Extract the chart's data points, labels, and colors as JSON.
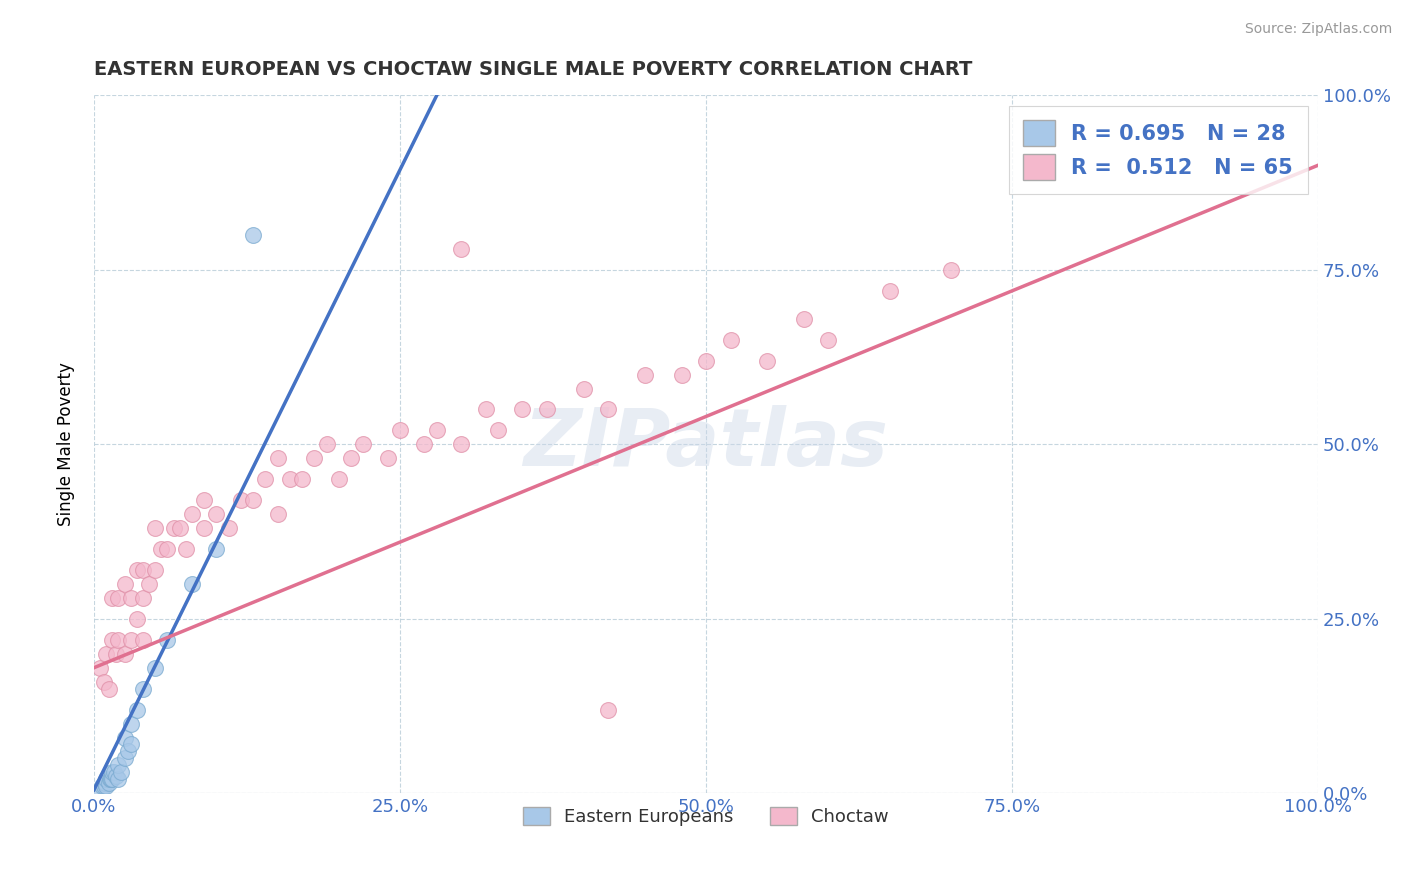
{
  "title": "EASTERN EUROPEAN VS CHOCTAW SINGLE MALE POVERTY CORRELATION CHART",
  "source": "Source: ZipAtlas.com",
  "ylabel": "Single Male Poverty",
  "watermark": "ZIPatlas",
  "blue_R": 0.695,
  "blue_N": 28,
  "pink_R": 0.512,
  "pink_N": 65,
  "blue_color": "#a8c8e8",
  "blue_edge_color": "#7aaad0",
  "blue_line_color": "#4472c4",
  "pink_color": "#f4b8cc",
  "pink_edge_color": "#e090a8",
  "pink_line_color": "#e07090",
  "legend_label_blue": "Eastern Europeans",
  "legend_label_pink": "Choctaw",
  "blue_line_x0": 0.0,
  "blue_line_y0": 0.005,
  "blue_line_x1": 0.28,
  "blue_line_y1": 1.0,
  "pink_line_x0": 0.0,
  "pink_line_y0": 0.18,
  "pink_line_x1": 1.0,
  "pink_line_y1": 0.9,
  "blue_points_x": [
    0.005,
    0.007,
    0.008,
    0.009,
    0.01,
    0.01,
    0.012,
    0.013,
    0.014,
    0.015,
    0.015,
    0.016,
    0.018,
    0.02,
    0.02,
    0.022,
    0.025,
    0.025,
    0.028,
    0.03,
    0.03,
    0.035,
    0.04,
    0.05,
    0.06,
    0.08,
    0.1,
    0.13
  ],
  "blue_points_y": [
    0.005,
    0.01,
    0.01,
    0.015,
    0.01,
    0.02,
    0.015,
    0.02,
    0.02,
    0.02,
    0.03,
    0.03,
    0.025,
    0.02,
    0.04,
    0.03,
    0.05,
    0.08,
    0.06,
    0.07,
    0.1,
    0.12,
    0.15,
    0.18,
    0.22,
    0.3,
    0.35,
    0.8
  ],
  "pink_points_x": [
    0.005,
    0.008,
    0.01,
    0.012,
    0.015,
    0.015,
    0.018,
    0.02,
    0.02,
    0.025,
    0.025,
    0.03,
    0.03,
    0.035,
    0.035,
    0.04,
    0.04,
    0.04,
    0.045,
    0.05,
    0.05,
    0.055,
    0.06,
    0.065,
    0.07,
    0.075,
    0.08,
    0.09,
    0.09,
    0.1,
    0.11,
    0.12,
    0.13,
    0.14,
    0.15,
    0.15,
    0.16,
    0.17,
    0.18,
    0.19,
    0.2,
    0.21,
    0.22,
    0.24,
    0.25,
    0.27,
    0.28,
    0.3,
    0.32,
    0.33,
    0.35,
    0.37,
    0.4,
    0.42,
    0.45,
    0.48,
    0.5,
    0.52,
    0.55,
    0.58,
    0.6,
    0.65,
    0.7,
    0.3,
    0.42
  ],
  "pink_points_y": [
    0.18,
    0.16,
    0.2,
    0.15,
    0.22,
    0.28,
    0.2,
    0.22,
    0.28,
    0.2,
    0.3,
    0.22,
    0.28,
    0.25,
    0.32,
    0.28,
    0.32,
    0.22,
    0.3,
    0.32,
    0.38,
    0.35,
    0.35,
    0.38,
    0.38,
    0.35,
    0.4,
    0.38,
    0.42,
    0.4,
    0.38,
    0.42,
    0.42,
    0.45,
    0.4,
    0.48,
    0.45,
    0.45,
    0.48,
    0.5,
    0.45,
    0.48,
    0.5,
    0.48,
    0.52,
    0.5,
    0.52,
    0.5,
    0.55,
    0.52,
    0.55,
    0.55,
    0.58,
    0.55,
    0.6,
    0.6,
    0.62,
    0.65,
    0.62,
    0.68,
    0.65,
    0.72,
    0.75,
    0.78,
    0.12
  ],
  "xtick_labels": [
    "0.0%",
    "25.0%",
    "50.0%",
    "75.0%",
    "100.0%"
  ],
  "xtick_values": [
    0.0,
    0.25,
    0.5,
    0.75,
    1.0
  ],
  "ytick_values": [
    0.0,
    0.25,
    0.5,
    0.75,
    1.0
  ],
  "right_ytick_labels": [
    "0.0%",
    "25.0%",
    "50.0%",
    "75.0%",
    "100.0%"
  ],
  "xlim": [
    0.0,
    1.0
  ],
  "ylim": [
    0.0,
    1.0
  ]
}
